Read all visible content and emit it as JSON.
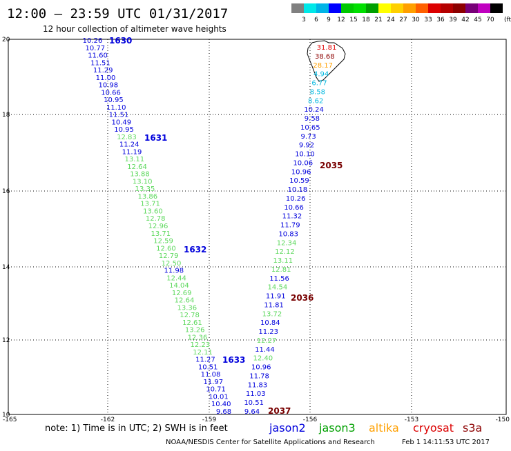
{
  "header": {
    "title": "12:00 — 23:59 UTC 01/31/2017",
    "subtitle": "12 hour collection of altimeter wave heights"
  },
  "legend": {
    "colors": [
      "#808080",
      "#00e8e8",
      "#00b4e6",
      "#0000ff",
      "#00c800",
      "#00e000",
      "#00a000",
      "#ffff00",
      "#ffd000",
      "#ffa000",
      "#ff6000",
      "#dc0000",
      "#b40000",
      "#8c0000",
      "#780078",
      "#c000c0",
      "#000000"
    ],
    "labels": [
      "3",
      "6",
      "9",
      "12",
      "15",
      "18",
      "21",
      "24",
      "27",
      "30",
      "33",
      "36",
      "39",
      "42",
      "45",
      "70",
      "(ft)"
    ]
  },
  "map": {
    "lon_ticks": [
      "-165",
      "-162",
      "-159",
      "-156",
      "-153",
      "-150"
    ],
    "lat_ticks": [
      "20",
      "18",
      "16",
      "14",
      "12",
      "10"
    ]
  },
  "track1": {
    "values": [
      "10.26",
      "10.77",
      "11.60",
      "11.51",
      "11.29",
      "11.00",
      "10.98",
      "10.66",
      "10.95",
      "11.10",
      "11.51",
      "10.49",
      "10.95",
      "12.83",
      "11.24",
      "11.19",
      "13.11",
      "12.64",
      "13.88",
      "13.10",
      "13.35",
      "13.86",
      "13.71",
      "13.60",
      "12.78",
      "12.96",
      "13.71",
      "12.59",
      "12.60",
      "12.79",
      "12.50",
      "11.98",
      "12.44",
      "14.04",
      "12.69",
      "12.64",
      "13.36",
      "12.78",
      "12.61",
      "13.26",
      "12.36",
      "12.23",
      "12.11",
      "11.27",
      "10.51",
      "11.08",
      "11.97",
      "10.71",
      "10.01",
      "10.40",
      "9.68"
    ],
    "colors": [
      "b",
      "b",
      "b",
      "b",
      "b",
      "b",
      "b",
      "b",
      "b",
      "b",
      "b",
      "b",
      "b",
      "g",
      "b",
      "b",
      "g",
      "g",
      "g",
      "g",
      "g",
      "g",
      "g",
      "g",
      "g",
      "g",
      "g",
      "g",
      "g",
      "g",
      "g",
      "b",
      "g",
      "g",
      "g",
      "g",
      "g",
      "g",
      "g",
      "g",
      "g",
      "g",
      "g",
      "b",
      "b",
      "b",
      "b",
      "b",
      "b",
      "b",
      "b"
    ],
    "times": [
      "1630",
      "1631",
      "1632",
      "1633"
    ]
  },
  "track2": {
    "values": [
      "31.81",
      "38.68",
      "28.17",
      "4.94",
      "6.77",
      "8.58",
      "8.62",
      "10.24",
      "9.58",
      "10.65",
      "9.73",
      "9.92",
      "10.10",
      "10.06",
      "10.96",
      "10.59",
      "10.18",
      "10.26",
      "10.66",
      "11.32",
      "11.79",
      "10.83",
      "12.34",
      "12.12",
      "13.11",
      "12.81",
      "11.56",
      "14.54",
      "11.91",
      "11.81",
      "13.72",
      "10.84",
      "11.23",
      "12.27",
      "11.44",
      "12.40",
      "10.96",
      "11.78",
      "11.83",
      "11.03",
      "10.51",
      "9.64"
    ],
    "colors": [
      "red",
      "dred",
      "orange",
      "cyan",
      "cyan",
      "cyan",
      "cyan",
      "b",
      "b",
      "b",
      "b",
      "b",
      "b",
      "b",
      "b",
      "b",
      "b",
      "b",
      "b",
      "b",
      "b",
      "b",
      "g",
      "g",
      "g",
      "g",
      "b",
      "g",
      "b",
      "b",
      "g",
      "b",
      "b",
      "g",
      "b",
      "g",
      "b",
      "b",
      "b",
      "b",
      "b",
      "b"
    ],
    "times": [
      "2035",
      "2036",
      "2037"
    ]
  },
  "footer": {
    "note": "note: 1) Time is in UTC; 2) SWH is in feet",
    "satellites": [
      {
        "name": "jason2",
        "color": "#0000dc"
      },
      {
        "name": "jason3",
        "color": "#00a000"
      },
      {
        "name": "altika",
        "color": "#ffa000"
      },
      {
        "name": "cryosat",
        "color": "#dc0000"
      },
      {
        "name": "s3a",
        "color": "#8c0000"
      }
    ],
    "credit": "NOAA/NESDIS Center for Satellite Applications and Research",
    "timestamp": "Feb  1 14:11:53 UTC 2017"
  },
  "palette": {
    "b": "#0000dc",
    "g": "#5cd85c",
    "red": "#e00000",
    "dred": "#8c0000",
    "orange": "#ffa000",
    "cyan": "#00b8e0",
    "time_blue": "#0000dc",
    "time_red": "#780000"
  }
}
